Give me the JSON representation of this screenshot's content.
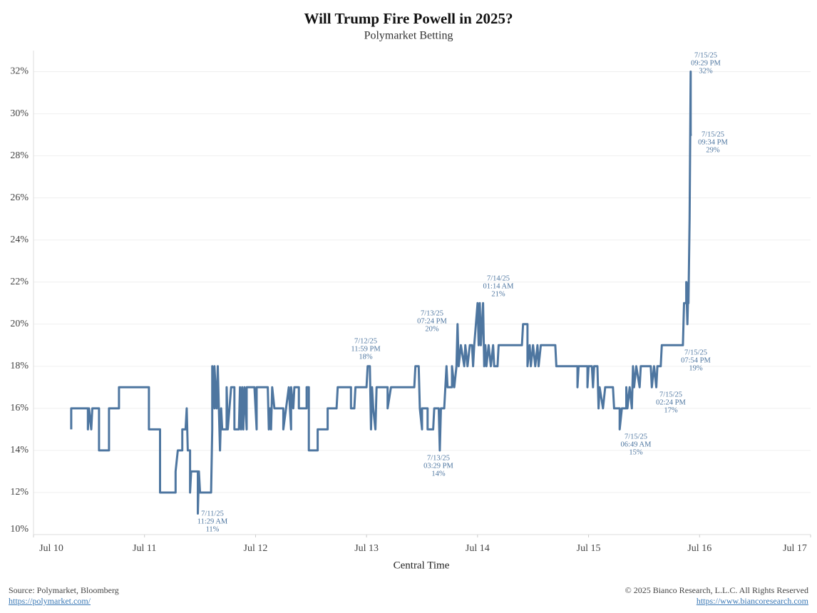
{
  "chart_data": {
    "type": "line",
    "title": "Will Trump Fire Powell in 2025?",
    "subtitle": "Polymarket Betting",
    "xlabel": "Central Time",
    "x": [
      10.34,
      10.34,
      10.49,
      10.49,
      10.5,
      10.52,
      10.53,
      10.59,
      10.59,
      10.68,
      10.68,
      10.77,
      10.77,
      11.04,
      11.04,
      11.14,
      11.14,
      11.28,
      11.28,
      11.3,
      11.34,
      11.34,
      11.37,
      11.38,
      11.39,
      11.41,
      11.41,
      11.42,
      11.48,
      11.48,
      11.49,
      11.5,
      11.6,
      11.61,
      11.61,
      11.63,
      11.63,
      11.65,
      11.66,
      11.67,
      11.68,
      11.69,
      11.7,
      11.74,
      11.74,
      11.75,
      11.78,
      11.81,
      11.81,
      11.85,
      11.86,
      11.87,
      11.88,
      11.89,
      11.9,
      11.92,
      11.92,
      11.99,
      12.01,
      12.01,
      12.11,
      12.12,
      12.13,
      12.14,
      12.15,
      12.17,
      12.23,
      12.25,
      12.25,
      12.3,
      12.32,
      12.32,
      12.34,
      12.35,
      12.39,
      12.39,
      12.46,
      12.46,
      12.48,
      12.48,
      12.56,
      12.56,
      12.65,
      12.65,
      12.73,
      12.74,
      12.86,
      12.86,
      12.89,
      12.9,
      13.0,
      13.01,
      13.03,
      13.04,
      13.05,
      13.06,
      13.08,
      13.09,
      13.19,
      13.19,
      13.22,
      13.43,
      13.44,
      13.47,
      13.48,
      13.5,
      13.5,
      13.55,
      13.55,
      13.6,
      13.61,
      13.65,
      13.66,
      13.67,
      13.7,
      13.72,
      13.73,
      13.77,
      13.77,
      13.79,
      13.81,
      13.82,
      13.83,
      13.85,
      13.88,
      13.89,
      13.91,
      13.93,
      13.95,
      13.96,
      13.97,
      14.0,
      14.01,
      14.02,
      14.03,
      14.05,
      14.06,
      14.07,
      14.08,
      14.1,
      14.12,
      14.14,
      14.15,
      14.18,
      14.19,
      14.4,
      14.41,
      14.45,
      14.45,
      14.47,
      14.48,
      14.5,
      14.52,
      14.54,
      14.55,
      14.57,
      14.7,
      14.71,
      14.9,
      14.9,
      14.91,
      14.99,
      14.99,
      15.0,
      15.03,
      15.04,
      15.05,
      15.08,
      15.09,
      15.1,
      15.13,
      15.15,
      15.22,
      15.23,
      15.28,
      15.28,
      15.3,
      15.34,
      15.34,
      15.35,
      15.37,
      15.39,
      15.4,
      15.41,
      15.43,
      15.46,
      15.47,
      15.56,
      15.57,
      15.59,
      15.61,
      15.62,
      15.65,
      15.66,
      15.85,
      15.86,
      15.88,
      15.88,
      15.89,
      15.9,
      15.9,
      15.91,
      15.92,
      15.92,
      15.93
    ],
    "values": [
      15,
      16,
      16,
      15,
      16,
      15,
      16,
      16,
      14,
      14,
      16,
      16,
      17,
      17,
      15,
      15,
      12,
      12,
      13,
      14,
      14,
      15,
      15,
      16,
      14,
      14,
      12,
      13,
      13,
      11,
      13,
      12,
      12,
      15,
      18,
      16,
      18,
      16,
      18,
      16,
      14,
      16,
      15,
      15,
      17,
      15,
      17,
      17,
      15,
      15,
      17,
      15,
      17,
      15,
      17,
      15,
      17,
      17,
      15,
      17,
      17,
      15,
      16,
      15,
      17,
      16,
      16,
      16,
      15,
      17,
      15,
      17,
      16,
      17,
      17,
      16,
      16,
      17,
      17,
      14,
      14,
      15,
      15,
      16,
      16,
      17,
      17,
      16,
      16,
      17,
      17,
      18,
      18,
      15,
      17,
      16,
      15,
      17,
      17,
      16,
      17,
      17,
      18,
      18,
      16,
      15,
      16,
      16,
      15,
      15,
      16,
      16,
      14,
      16,
      16,
      18,
      17,
      17,
      18,
      17,
      18,
      20,
      18,
      19,
      18,
      19,
      18,
      19,
      19,
      18,
      19,
      21,
      19,
      21,
      19,
      21,
      18,
      19,
      18,
      19,
      18,
      19,
      18,
      18,
      19,
      19,
      20,
      20,
      18,
      19,
      18,
      19,
      18,
      19,
      18,
      19,
      19,
      18,
      18,
      17,
      18,
      18,
      17,
      18,
      18,
      17,
      18,
      18,
      16,
      17,
      16,
      17,
      17,
      16,
      16,
      15,
      16,
      16,
      17,
      16,
      17,
      16,
      18,
      17,
      18,
      17,
      18,
      18,
      17,
      18,
      17,
      18,
      18,
      19,
      19,
      21,
      21,
      22,
      20,
      22,
      21,
      25,
      32,
      29,
      29
    ],
    "color": "#4e76a0",
    "xlim": [
      10,
      17
    ],
    "xticks": [
      {
        "value": 10,
        "label": "Jul 10"
      },
      {
        "value": 11,
        "label": "Jul 11"
      },
      {
        "value": 12,
        "label": "Jul 12"
      },
      {
        "value": 13,
        "label": "Jul 13"
      },
      {
        "value": 14,
        "label": "Jul 14"
      },
      {
        "value": 15,
        "label": "Jul 15"
      },
      {
        "value": 16,
        "label": "Jul 16"
      },
      {
        "value": 17,
        "label": "Jul 17"
      }
    ],
    "ylim": [
      10,
      33
    ],
    "yticks": [
      {
        "value": 10,
        "label": "10%"
      },
      {
        "value": 12,
        "label": "12%"
      },
      {
        "value": 14,
        "label": "14%"
      },
      {
        "value": 16,
        "label": "16%"
      },
      {
        "value": 18,
        "label": "18%"
      },
      {
        "value": 20,
        "label": "20%"
      },
      {
        "value": 22,
        "label": "22%"
      },
      {
        "value": 24,
        "label": "24%"
      },
      {
        "value": 26,
        "label": "26%"
      },
      {
        "value": 28,
        "label": "28%"
      },
      {
        "value": 30,
        "label": "30%"
      },
      {
        "value": 32,
        "label": "32%"
      }
    ],
    "grid": true,
    "annotations": [
      [
        "7/11/25",
        "11:29 AM",
        "11%"
      ],
      [
        "7/12/25",
        "11:59 PM",
        "18%"
      ],
      [
        "7/13/25",
        "07:24 PM",
        "20%"
      ],
      [
        "7/13/25",
        "03:29 PM",
        "14%"
      ],
      [
        "7/14/25",
        "01:14 AM",
        "21%"
      ],
      [
        "7/15/25",
        "06:49 AM",
        "15%"
      ],
      [
        "7/15/25",
        "02:24 PM",
        "17%"
      ],
      [
        "7/15/25",
        "07:54 PM",
        "19%"
      ],
      [
        "7/15/25",
        "09:29 PM",
        "32%"
      ],
      [
        "7/15/25",
        "09:34 PM",
        "29%"
      ]
    ]
  },
  "footer": {
    "source": "Source: Polymarket, Bloomberg",
    "source_url": "https://polymarket.com/",
    "copyright": "© 2025 Bianco Research, L.L.C. All Rights Reserved",
    "copyright_url": "https://www.biancoresearch.com"
  }
}
